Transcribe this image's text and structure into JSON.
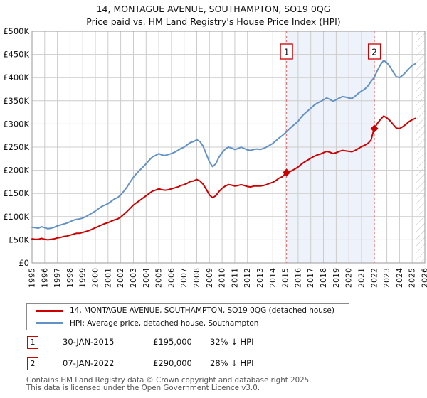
{
  "title_line1": "14, MONTAGUE AVENUE, SOUTHAMPTON, SO19 0QG",
  "title_line2": "Price paid vs. HM Land Registry's House Price Index (HPI)",
  "colors": {
    "price": "#cc0000",
    "hpi": "#6291c6",
    "grid": "#cccccc",
    "plot_border": "#999999",
    "shade": "#eef2fa",
    "dashed": "#e06666",
    "hatch": "#c0c0c0",
    "footer_text": "#555555"
  },
  "chart_data": {
    "type": "line",
    "units": "GBP thousands",
    "x_range": [
      1995,
      2026
    ],
    "y_range": [
      0,
      500
    ],
    "x_start": 1995,
    "x_step": 0.25,
    "x_ticks": [
      1995,
      1996,
      1997,
      1998,
      1999,
      2000,
      2001,
      2002,
      2003,
      2004,
      2005,
      2006,
      2007,
      2008,
      2009,
      2010,
      2011,
      2012,
      2013,
      2014,
      2015,
      2016,
      2017,
      2018,
      2019,
      2020,
      2021,
      2022,
      2023,
      2024,
      2025,
      2026
    ],
    "y_ticks": [
      {
        "v": 0,
        "label": "£0"
      },
      {
        "v": 50,
        "label": "£50K"
      },
      {
        "v": 100,
        "label": "£100K"
      },
      {
        "v": 150,
        "label": "£150K"
      },
      {
        "v": 200,
        "label": "£200K"
      },
      {
        "v": 250,
        "label": "£250K"
      },
      {
        "v": 300,
        "label": "£300K"
      },
      {
        "v": 350,
        "label": "£350K"
      },
      {
        "v": 400,
        "label": "£400K"
      },
      {
        "v": 450,
        "label": "£450K"
      },
      {
        "v": 500,
        "label": "£500K"
      }
    ],
    "shaded_span": [
      2015.08,
      2022.02
    ],
    "hatch_span": [
      2025.33,
      2026
    ],
    "grid": true,
    "legend_position": "below",
    "series": [
      {
        "id": "price-paid",
        "name": "14, MONTAGUE AVENUE, SOUTHAMPTON, SO19 0QG (detached house)",
        "color": "#cc0000",
        "values": [
          52,
          51,
          51,
          53,
          51,
          50,
          51,
          52,
          54,
          55,
          57,
          58,
          60,
          62,
          64,
          64,
          66,
          68,
          70,
          73,
          76,
          79,
          82,
          85,
          87,
          90,
          93,
          95,
          99,
          105,
          111,
          118,
          125,
          130,
          135,
          140,
          145,
          150,
          155,
          157,
          160,
          158,
          157,
          158,
          160,
          162,
          164,
          167,
          169,
          172,
          176,
          177,
          180,
          177,
          170,
          159,
          147,
          141,
          145,
          154,
          161,
          166,
          169,
          168,
          166,
          167,
          169,
          167,
          165,
          164,
          166,
          166,
          166,
          167,
          169,
          172,
          174,
          178,
          183,
          186,
          193,
          196,
          199,
          203,
          207,
          213,
          218,
          222,
          226,
          230,
          233,
          235,
          238,
          241,
          239,
          236,
          238,
          241,
          243,
          242,
          241,
          240,
          243,
          247,
          251,
          254,
          258,
          265,
          290,
          301,
          310,
          317,
          313,
          307,
          299,
          291,
          290,
          294,
          299,
          305,
          309,
          312
        ]
      },
      {
        "id": "hpi",
        "name": "HPI: Average price, detached house, Southampton",
        "color": "#6291c6",
        "values": [
          77,
          76,
          75,
          78,
          76,
          74,
          75,
          77,
          80,
          82,
          84,
          86,
          89,
          92,
          94,
          95,
          97,
          100,
          104,
          108,
          112,
          117,
          122,
          125,
          128,
          133,
          138,
          141,
          147,
          155,
          164,
          175,
          185,
          193,
          200,
          207,
          214,
          222,
          229,
          232,
          236,
          233,
          232,
          234,
          236,
          239,
          243,
          247,
          250,
          255,
          260,
          262,
          266,
          262,
          252,
          235,
          218,
          208,
          214,
          228,
          238,
          246,
          250,
          248,
          245,
          247,
          250,
          247,
          244,
          243,
          245,
          246,
          245,
          247,
          250,
          254,
          258,
          264,
          270,
          275,
          281,
          288,
          294,
          300,
          306,
          315,
          322,
          328,
          334,
          340,
          345,
          348,
          352,
          356,
          353,
          349,
          352,
          356,
          359,
          358,
          356,
          355,
          360,
          366,
          371,
          375,
          382,
          392,
          400,
          415,
          428,
          437,
          432,
          424,
          412,
          402,
          400,
          405,
          412,
          420,
          426,
          430
        ]
      }
    ],
    "markers": [
      {
        "label": "1",
        "x": 2015.08,
        "y": 195
      },
      {
        "label": "2",
        "x": 2022.02,
        "y": 290
      }
    ]
  },
  "legend": {
    "items": [
      {
        "label": "14, MONTAGUE AVENUE, SOUTHAMPTON, SO19 0QG (detached house)"
      },
      {
        "label": "HPI: Average price, detached house, Southampton"
      }
    ]
  },
  "annotations": [
    {
      "num": "1",
      "date": "30-JAN-2015",
      "price": "£195,000",
      "delta": "32% ↓ HPI"
    },
    {
      "num": "2",
      "date": "07-JAN-2022",
      "price": "£290,000",
      "delta": "28% ↓ HPI"
    }
  ],
  "footer_line1": "Contains HM Land Registry data © Crown copyright and database right 2025.",
  "footer_line2": "This data is licensed under the Open Government Licence v3.0."
}
